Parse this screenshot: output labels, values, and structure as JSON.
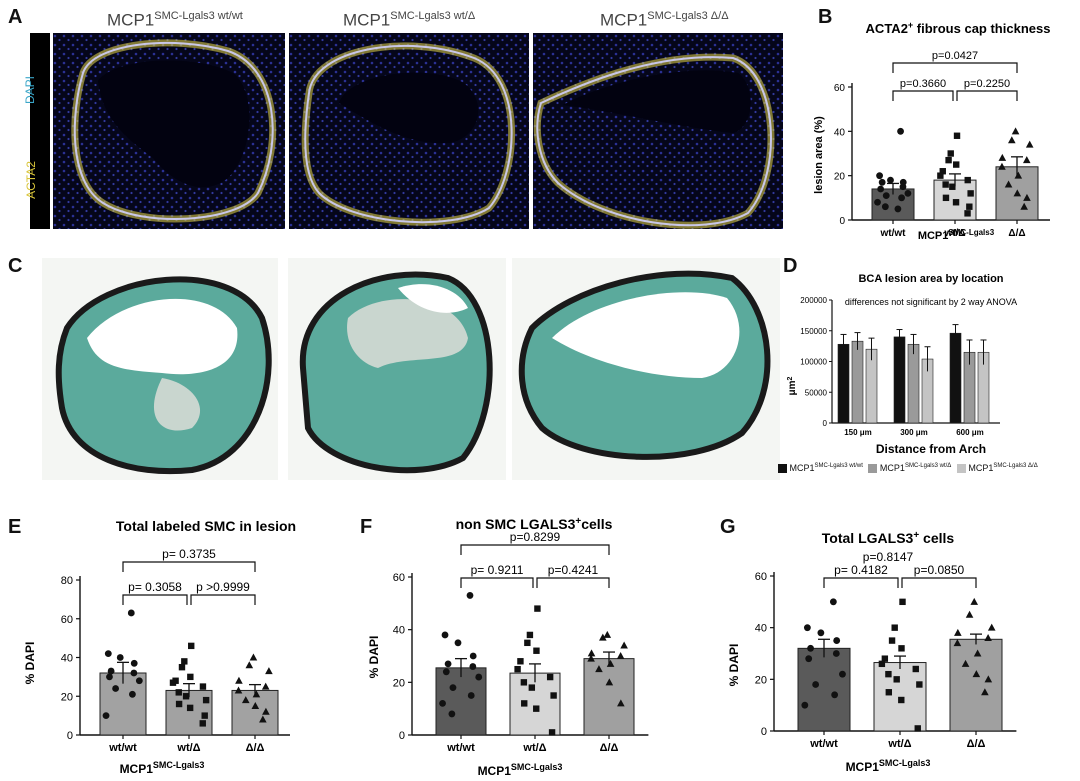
{
  "panel_letters": {
    "A": "A",
    "B": "B",
    "C": "C",
    "D": "D",
    "E": "E",
    "F": "F",
    "G": "G"
  },
  "panel_a": {
    "titles": [
      {
        "base": "MCP1",
        "sup": "SMC-Lgals3 wt/wt"
      },
      {
        "base": "MCP1",
        "sup": "SMC-Lgals3 wt/Δ"
      },
      {
        "base": "MCP1",
        "sup": "SMC-Lgals3 Δ/Δ"
      }
    ],
    "stains": {
      "dapi": "DAPI",
      "acta2": "ACTA2"
    },
    "colors": {
      "dapi": "#3aa6c8",
      "acta2": "#d9c53a",
      "background": "#05061a",
      "nuclei": "#3b43c8",
      "smc": "#e7d94a"
    }
  },
  "panel_c": {
    "colors": {
      "collagen": "#3f9c8c",
      "elastin": "#1a1a1a",
      "lumen": "#ffffff",
      "plaque": "#c9d6cf"
    }
  },
  "chart_data": [
    {
      "panel": "B",
      "type": "bar",
      "title_main": "ACTA2",
      "title_sup": "+",
      "title_rest": " fibrous cap thickness",
      "ylabel": "lesion area (%)",
      "xlabel_main": "MCP1",
      "xlabel_sup": "SMC-Lgals3",
      "categories": [
        "wt/wt",
        "wt/Δ",
        "Δ/Δ"
      ],
      "values": [
        14,
        18,
        24
      ],
      "errors": [
        2.5,
        2.8,
        4.5
      ],
      "ylim": [
        0,
        60
      ],
      "yticks": [
        "0",
        "20",
        "40",
        "60"
      ],
      "bar_colors": [
        "#5a5a5a",
        "#d6d6d6",
        "#a0a0a0"
      ],
      "markers": [
        "circle",
        "square",
        "triangle"
      ],
      "points": [
        [
          40,
          20,
          18,
          17,
          17,
          15,
          14,
          12,
          11,
          10,
          8,
          6,
          5
        ],
        [
          38,
          30,
          27,
          25,
          22,
          20,
          18,
          16,
          15,
          12,
          10,
          8,
          6,
          3
        ],
        [
          40,
          36,
          34,
          28,
          27,
          24,
          20,
          16,
          12,
          10,
          6
        ]
      ],
      "comparisons": [
        {
          "text": "p=0.0427",
          "from": 0,
          "to": 2,
          "level": 0
        },
        {
          "text": "p=0.3660",
          "from": 0,
          "to": 1,
          "level": 1
        },
        {
          "text": "p=0.2250",
          "from": 1,
          "to": 2,
          "level": 1
        }
      ]
    },
    {
      "panel": "D",
      "type": "bar",
      "title": "BCA lesion area by location",
      "subtitle": "differences not significant by 2 way ANOVA",
      "ylabel": "μm",
      "ylabel_sup": "2",
      "xlabel": "Distance from Arch",
      "categories": [
        "150 μm",
        "300 μm",
        "600 μm"
      ],
      "ylim": [
        0,
        200000
      ],
      "yticks": [
        "0",
        "50000",
        "100000",
        "150000",
        "200000"
      ],
      "series": [
        {
          "values": [
            128000,
            140000,
            146000
          ],
          "errors": [
            16000,
            12000,
            14000
          ],
          "color": "#111111"
        },
        {
          "values": [
            133000,
            128000,
            115000
          ],
          "errors": [
            14000,
            16000,
            20000
          ],
          "color": "#9a9a9a"
        },
        {
          "values": [
            120000,
            104000,
            115000
          ],
          "errors": [
            18000,
            20000,
            20000
          ],
          "color": "#c4c4c4"
        }
      ],
      "legend": [
        {
          "base": "MCP1",
          "sup": "SMC-Lgals3 wt/wt"
        },
        {
          "base": "MCP1",
          "sup": "SMC-Lgals3 wt/Δ"
        },
        {
          "base": "MCP1",
          "sup": "SMC-Lgals3 Δ/Δ"
        }
      ]
    },
    {
      "panel": "E",
      "type": "bar",
      "title": "Total labeled SMC in lesion",
      "ylabel": "% DAPI",
      "xlabel_main": "MCP1",
      "xlabel_sup": "SMC-Lgals3",
      "categories": [
        "wt/wt",
        "wt/Δ",
        "Δ/Δ"
      ],
      "values": [
        32,
        23,
        23
      ],
      "errors": [
        5.5,
        3.5,
        3
      ],
      "ylim": [
        0,
        80
      ],
      "yticks": [
        "0",
        "20",
        "40",
        "60",
        "80"
      ],
      "bar_colors": [
        "#a2a2a2",
        "#a2a2a2",
        "#a2a2a2"
      ],
      "markers": [
        "circle",
        "square",
        "triangle"
      ],
      "points": [
        [
          63,
          42,
          40,
          37,
          33,
          32,
          30,
          28,
          24,
          21,
          10
        ],
        [
          46,
          38,
          35,
          30,
          28,
          27,
          25,
          22,
          20,
          18,
          16,
          14,
          10,
          6
        ],
        [
          40,
          36,
          33,
          28,
          25,
          23,
          21,
          18,
          15,
          12,
          8
        ]
      ],
      "comparisons": [
        {
          "text": "p= 0.3735",
          "from": 0,
          "to": 2,
          "level": 0
        },
        {
          "text": "p= 0.3058",
          "from": 0,
          "to": 1,
          "level": 1
        },
        {
          "text": "p >0.9999",
          "from": 1,
          "to": 2,
          "level": 1
        }
      ]
    },
    {
      "panel": "F",
      "type": "bar",
      "title_main": "non SMC LGALS3",
      "title_sup": "+",
      "title_rest": "cells",
      "ylabel": "% DAPI",
      "xlabel_main": "MCP1",
      "xlabel_sup": "SMC-Lgals3",
      "categories": [
        "wt/wt",
        "wt/Δ",
        "Δ/Δ"
      ],
      "values": [
        25.5,
        23.5,
        29
      ],
      "errors": [
        3.5,
        3.5,
        2.5
      ],
      "ylim": [
        0,
        60
      ],
      "yticks": [
        "0",
        "20",
        "40",
        "60"
      ],
      "bar_colors": [
        "#5a5a5a",
        "#d6d6d6",
        "#a0a0a0"
      ],
      "markers": [
        "circle",
        "square",
        "triangle"
      ],
      "points": [
        [
          53,
          38,
          35,
          30,
          27,
          26,
          24,
          22,
          18,
          15,
          12,
          8
        ],
        [
          48,
          38,
          35,
          32,
          28,
          25,
          22,
          20,
          18,
          15,
          12,
          10,
          1
        ],
        [
          38,
          37,
          34,
          31,
          30,
          29,
          27,
          25,
          20,
          12
        ]
      ],
      "comparisons": [
        {
          "text": "p=0.8299",
          "from": 0,
          "to": 2,
          "level": 0
        },
        {
          "text": "p= 0.9211",
          "from": 0,
          "to": 1,
          "level": 1
        },
        {
          "text": "p=0.4241",
          "from": 1,
          "to": 2,
          "level": 1
        }
      ]
    },
    {
      "panel": "G",
      "type": "bar",
      "title_main": "Total LGALS3",
      "title_sup": "+",
      "title_rest": " cells",
      "subtitle": "p=0.8147",
      "ylabel": "% DAPI",
      "xlabel_main": "MCP1",
      "xlabel_sup": "SMC-Lgals3",
      "categories": [
        "wt/wt",
        "wt/Δ",
        "Δ/Δ"
      ],
      "values": [
        32,
        26.5,
        35.5
      ],
      "errors": [
        3.5,
        2.5,
        2
      ],
      "ylim": [
        0,
        60
      ],
      "yticks": [
        "0",
        "20",
        "40",
        "60"
      ],
      "bar_colors": [
        "#5a5a5a",
        "#d6d6d6",
        "#a0a0a0"
      ],
      "markers": [
        "circle",
        "square",
        "triangle"
      ],
      "points": [
        [
          50,
          40,
          38,
          35,
          32,
          30,
          28,
          22,
          18,
          14,
          10
        ],
        [
          50,
          40,
          35,
          32,
          28,
          26,
          24,
          22,
          20,
          18,
          15,
          12,
          1
        ],
        [
          50,
          45,
          40,
          38,
          36,
          34,
          30,
          26,
          22,
          20,
          15
        ]
      ],
      "comparisons": [
        {
          "text": "p= 0.4182",
          "from": 0,
          "to": 1,
          "level": 1
        },
        {
          "text": "p=0.0850",
          "from": 1,
          "to": 2,
          "level": 1
        }
      ]
    }
  ]
}
